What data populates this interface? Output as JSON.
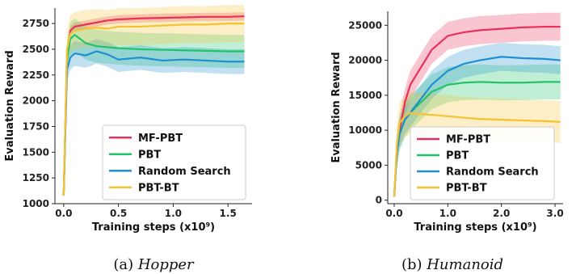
{
  "colors": {
    "MF-PBT": "#e8305a",
    "PBT": "#22c468",
    "Random Search": "#1f8fd0",
    "PBT-BT": "#f5c232"
  },
  "captions": [
    {
      "prefix": "(a) ",
      "name": "Hopper"
    },
    {
      "prefix": "(b) ",
      "name": "Humanoid"
    }
  ],
  "chart_data": [
    {
      "type": "line",
      "title": "",
      "xlabel": "Training steps (x10⁹)",
      "ylabel": "Evaluation Reward",
      "xlim": [
        -0.08,
        1.72
      ],
      "ylim": [
        1000,
        2900
      ],
      "xticks": [
        0.0,
        0.5,
        1.0,
        1.5
      ],
      "xtick_labels": [
        "0.0",
        "0.5",
        "1.0",
        "1.5"
      ],
      "yticks": [
        1000,
        1250,
        1500,
        1750,
        2000,
        2250,
        2500,
        2750
      ],
      "ytick_labels": [
        "1000",
        "1250",
        "1500",
        "1750",
        "2000",
        "2250",
        "2500",
        "2750"
      ],
      "grid": false,
      "legend_position": "lower-right",
      "legend": [
        "MF-PBT",
        "PBT",
        "Random Search",
        "PBT-BT"
      ],
      "series": [
        {
          "name": "MF-PBT",
          "x": [
            0,
            0.03,
            0.06,
            0.1,
            0.2,
            0.3,
            0.4,
            0.5,
            0.7,
            0.9,
            1.1,
            1.3,
            1.5,
            1.65
          ],
          "y": [
            1080,
            2450,
            2680,
            2720,
            2740,
            2760,
            2780,
            2790,
            2800,
            2805,
            2810,
            2815,
            2815,
            2820
          ],
          "band": 40
        },
        {
          "name": "PBT",
          "x": [
            0,
            0.03,
            0.06,
            0.1,
            0.2,
            0.3,
            0.4,
            0.5,
            0.7,
            0.9,
            1.1,
            1.3,
            1.5,
            1.65
          ],
          "y": [
            1080,
            2400,
            2600,
            2640,
            2560,
            2530,
            2520,
            2510,
            2500,
            2495,
            2490,
            2485,
            2480,
            2480
          ],
          "band": 160
        },
        {
          "name": "Random Search",
          "x": [
            0,
            0.03,
            0.06,
            0.1,
            0.2,
            0.3,
            0.4,
            0.5,
            0.7,
            0.9,
            1.1,
            1.3,
            1.5,
            1.65
          ],
          "y": [
            1080,
            2300,
            2420,
            2460,
            2440,
            2480,
            2450,
            2400,
            2420,
            2390,
            2400,
            2390,
            2380,
            2380
          ],
          "band": 120
        },
        {
          "name": "PBT-BT",
          "x": [
            0,
            0.03,
            0.06,
            0.1,
            0.2,
            0.3,
            0.4,
            0.5,
            0.7,
            0.9,
            1.1,
            1.3,
            1.5,
            1.65
          ],
          "y": [
            1080,
            2500,
            2650,
            2680,
            2700,
            2710,
            2700,
            2720,
            2720,
            2730,
            2740,
            2740,
            2750,
            2750
          ],
          "band": 180
        }
      ]
    },
    {
      "type": "line",
      "title": "",
      "xlabel": "Training steps (x10⁹)",
      "ylabel": "Evaluation Reward",
      "xlim": [
        -0.12,
        3.15
      ],
      "ylim": [
        -500,
        27000
      ],
      "xticks": [
        0.0,
        1.0,
        2.0,
        3.0
      ],
      "xtick_labels": [
        "0.0",
        "1.0",
        "2.0",
        "3.0"
      ],
      "yticks": [
        0,
        5000,
        10000,
        15000,
        20000,
        25000
      ],
      "ytick_labels": [
        "0",
        "5000",
        "10000",
        "15000",
        "20000",
        "25000"
      ],
      "grid": false,
      "legend_position": "lower-right",
      "legend": [
        "MF-PBT",
        "PBT",
        "Random Search",
        "PBT-BT"
      ],
      "series": [
        {
          "name": "MF-PBT",
          "x": [
            0,
            0.05,
            0.1,
            0.2,
            0.3,
            0.5,
            0.7,
            1.0,
            1.3,
            1.6,
            2.0,
            2.4,
            2.8,
            3.1
          ],
          "y": [
            500,
            7000,
            10000,
            14000,
            16500,
            19000,
            21500,
            23500,
            24000,
            24300,
            24500,
            24700,
            24800,
            24800
          ],
          "band": 2000
        },
        {
          "name": "PBT",
          "x": [
            0,
            0.05,
            0.1,
            0.2,
            0.3,
            0.5,
            0.7,
            1.0,
            1.3,
            1.6,
            2.0,
            2.4,
            2.8,
            3.1
          ],
          "y": [
            500,
            7000,
            9500,
            11500,
            12500,
            14000,
            15500,
            16500,
            16800,
            16900,
            16800,
            16800,
            16900,
            16900
          ],
          "band": 2500
        },
        {
          "name": "Random Search",
          "x": [
            0,
            0.05,
            0.1,
            0.2,
            0.3,
            0.5,
            0.7,
            1.0,
            1.3,
            1.6,
            2.0,
            2.4,
            2.8,
            3.1
          ],
          "y": [
            500,
            7000,
            9500,
            11500,
            12500,
            14500,
            16500,
            18500,
            19500,
            20000,
            20500,
            20300,
            20200,
            20000
          ],
          "band": 2000
        },
        {
          "name": "PBT-BT",
          "x": [
            0,
            0.05,
            0.1,
            0.2,
            0.3,
            0.5,
            0.7,
            1.0,
            1.3,
            1.6,
            2.0,
            2.4,
            2.8,
            3.1
          ],
          "y": [
            500,
            8000,
            11000,
            12000,
            12500,
            12300,
            12200,
            12000,
            11800,
            11600,
            11500,
            11400,
            11300,
            11200
          ],
          "band": 3000
        }
      ]
    }
  ]
}
